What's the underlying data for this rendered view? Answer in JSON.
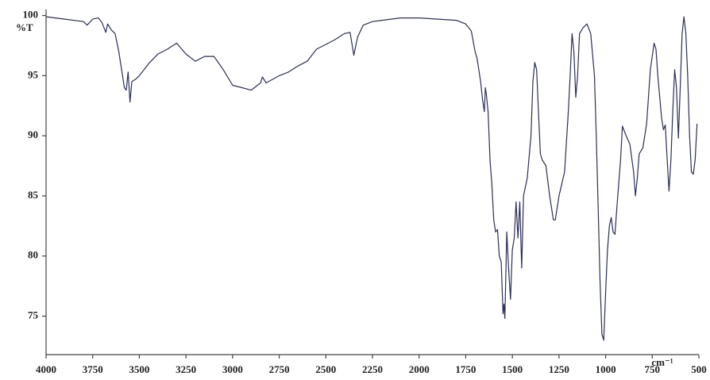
{
  "chart_data": {
    "type": "line",
    "y_label": "%T",
    "x_label": "cm⁻¹",
    "color": "#2b2e5a",
    "xlim": [
      4000,
      500
    ],
    "ylim": [
      71.8,
      100.5
    ],
    "xticks": [
      4000,
      3750,
      3500,
      3250,
      3000,
      2750,
      2500,
      2250,
      2000,
      1750,
      1500,
      1250,
      1000,
      750,
      500
    ],
    "yticks": [
      75,
      80,
      85,
      90,
      95,
      100
    ],
    "x": [
      4000,
      3900,
      3800,
      3780,
      3750,
      3720,
      3700,
      3680,
      3670,
      3650,
      3630,
      3610,
      3600,
      3590,
      3580,
      3570,
      3560,
      3550,
      3540,
      3520,
      3500,
      3450,
      3400,
      3350,
      3300,
      3250,
      3200,
      3150,
      3100,
      3050,
      3000,
      2950,
      2900,
      2850,
      2840,
      2820,
      2750,
      2700,
      2650,
      2600,
      2550,
      2500,
      2450,
      2400,
      2370,
      2350,
      2330,
      2300,
      2250,
      2200,
      2100,
      2000,
      1900,
      1800,
      1750,
      1720,
      1700,
      1690,
      1680,
      1670,
      1660,
      1650,
      1645,
      1640,
      1630,
      1620,
      1610,
      1600,
      1590,
      1580,
      1570,
      1560,
      1550,
      1545,
      1540,
      1530,
      1520,
      1510,
      1500,
      1490,
      1480,
      1470,
      1460,
      1450,
      1440,
      1420,
      1400,
      1390,
      1380,
      1370,
      1360,
      1350,
      1340,
      1320,
      1300,
      1280,
      1270,
      1250,
      1220,
      1200,
      1190,
      1180,
      1170,
      1160,
      1150,
      1140,
      1120,
      1100,
      1080,
      1060,
      1050,
      1040,
      1030,
      1020,
      1010,
      1000,
      990,
      980,
      970,
      960,
      950,
      940,
      920,
      910,
      890,
      870,
      850,
      840,
      830,
      820,
      800,
      780,
      760,
      740,
      730,
      720,
      700,
      690,
      680,
      670,
      660,
      650,
      640,
      630,
      620,
      610,
      600,
      590,
      580,
      570,
      560,
      550,
      540,
      530,
      520,
      510
    ],
    "values": [
      99.9,
      99.7,
      99.5,
      99.2,
      99.7,
      99.8,
      99.4,
      98.6,
      99.3,
      98.8,
      98.5,
      97,
      96,
      95,
      94,
      93.8,
      95.3,
      92.8,
      94.5,
      94.7,
      95,
      96,
      96.8,
      97.2,
      97.7,
      96.8,
      96.2,
      96.6,
      96.6,
      95.5,
      94.2,
      94,
      93.8,
      94.4,
      94.9,
      94.4,
      95,
      95.3,
      95.8,
      96.2,
      97.2,
      97.6,
      98,
      98.5,
      98.6,
      96.7,
      98.2,
      99.2,
      99.5,
      99.6,
      99.8,
      99.8,
      99.7,
      99.6,
      99.3,
      98.7,
      97,
      96.5,
      95.5,
      94.5,
      93,
      92,
      94,
      93.5,
      92,
      88,
      86,
      83,
      82,
      82.2,
      80,
      79.5,
      75.2,
      76,
      74.8,
      82,
      79,
      76.4,
      80.5,
      81.5,
      84.5,
      81.5,
      84.5,
      79,
      85,
      86.5,
      90,
      94.5,
      96.1,
      95.5,
      92,
      88.5,
      88,
      87.5,
      85,
      83,
      83,
      85,
      87,
      92,
      95,
      98.5,
      97,
      93.2,
      95,
      98.5,
      99,
      99.3,
      98.5,
      95,
      90,
      84,
      78,
      73.5,
      73,
      77,
      80.5,
      82.5,
      83.2,
      82,
      81.8,
      84,
      88,
      90.8,
      90,
      89.3,
      87,
      85,
      86.5,
      88.5,
      89,
      91,
      95.5,
      97.7,
      97.2,
      95,
      91.5,
      90.5,
      90.9,
      88,
      85.4,
      88,
      92,
      95.5,
      94,
      89.8,
      94,
      98.5,
      99.9,
      98.5,
      95,
      90,
      87,
      86.8,
      88,
      91
    ]
  }
}
